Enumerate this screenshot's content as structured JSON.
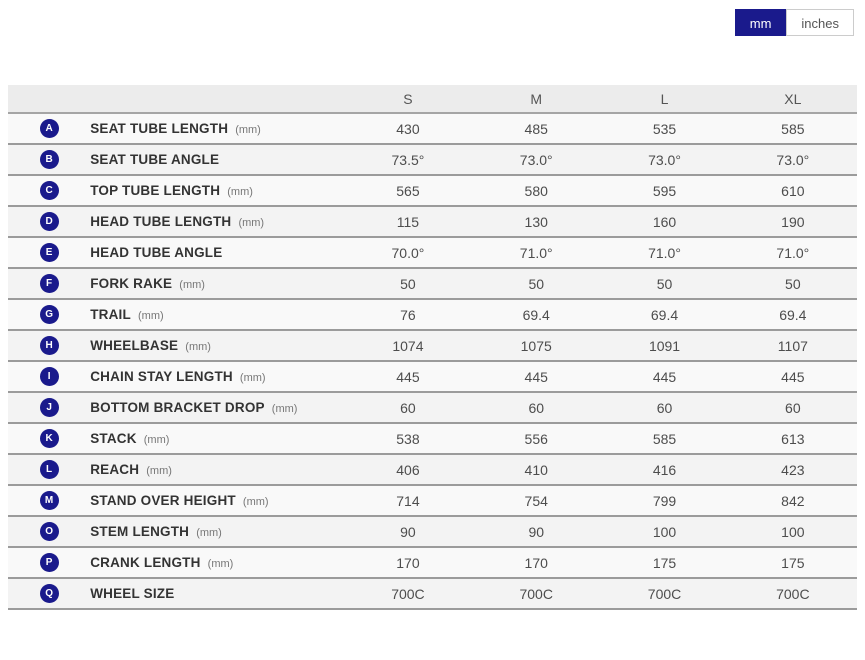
{
  "colors": {
    "accent_navy": "#1a1a8c",
    "header_bg": "#ececec",
    "row_odd_bg": "#f9f9f9",
    "row_even_bg": "#f3f3f3",
    "row_border": "#9b9b9b",
    "toggle_border": "#cccccc"
  },
  "unit_toggle": {
    "mm_label": "mm",
    "inches_label": "inches",
    "selected": "mm"
  },
  "table": {
    "columns": [
      "S",
      "M",
      "L",
      "XL"
    ],
    "rows": [
      {
        "letter": "A",
        "label": "SEAT TUBE LENGTH",
        "unit": "(mm)",
        "values": [
          "430",
          "485",
          "535",
          "585"
        ]
      },
      {
        "letter": "B",
        "label": "SEAT TUBE ANGLE",
        "unit": "",
        "values": [
          "73.5°",
          "73.0°",
          "73.0°",
          "73.0°"
        ]
      },
      {
        "letter": "C",
        "label": "TOP TUBE LENGTH",
        "unit": "(mm)",
        "values": [
          "565",
          "580",
          "595",
          "610"
        ]
      },
      {
        "letter": "D",
        "label": "HEAD TUBE LENGTH",
        "unit": "(mm)",
        "values": [
          "115",
          "130",
          "160",
          "190"
        ]
      },
      {
        "letter": "E",
        "label": "HEAD TUBE ANGLE",
        "unit": "",
        "values": [
          "70.0°",
          "71.0°",
          "71.0°",
          "71.0°"
        ]
      },
      {
        "letter": "F",
        "label": "FORK RAKE",
        "unit": "(mm)",
        "values": [
          "50",
          "50",
          "50",
          "50"
        ]
      },
      {
        "letter": "G",
        "label": "TRAIL",
        "unit": "(mm)",
        "values": [
          "76",
          "69.4",
          "69.4",
          "69.4"
        ]
      },
      {
        "letter": "H",
        "label": "WHEELBASE",
        "unit": "(mm)",
        "values": [
          "1074",
          "1075",
          "1091",
          "1107"
        ]
      },
      {
        "letter": "I",
        "label": "CHAIN STAY LENGTH",
        "unit": "(mm)",
        "values": [
          "445",
          "445",
          "445",
          "445"
        ]
      },
      {
        "letter": "J",
        "label": "BOTTOM BRACKET DROP",
        "unit": "(mm)",
        "values": [
          "60",
          "60",
          "60",
          "60"
        ]
      },
      {
        "letter": "K",
        "label": "STACK",
        "unit": "(mm)",
        "values": [
          "538",
          "556",
          "585",
          "613"
        ]
      },
      {
        "letter": "L",
        "label": "REACH",
        "unit": "(mm)",
        "values": [
          "406",
          "410",
          "416",
          "423"
        ]
      },
      {
        "letter": "M",
        "label": "STAND OVER HEIGHT",
        "unit": "(mm)",
        "values": [
          "714",
          "754",
          "799",
          "842"
        ]
      },
      {
        "letter": "O",
        "label": "STEM LENGTH",
        "unit": "(mm)",
        "values": [
          "90",
          "90",
          "100",
          "100"
        ]
      },
      {
        "letter": "P",
        "label": "CRANK LENGTH",
        "unit": "(mm)",
        "values": [
          "170",
          "170",
          "175",
          "175"
        ]
      },
      {
        "letter": "Q",
        "label": "WHEEL SIZE",
        "unit": "",
        "values": [
          "700C",
          "700C",
          "700C",
          "700C"
        ]
      }
    ]
  }
}
